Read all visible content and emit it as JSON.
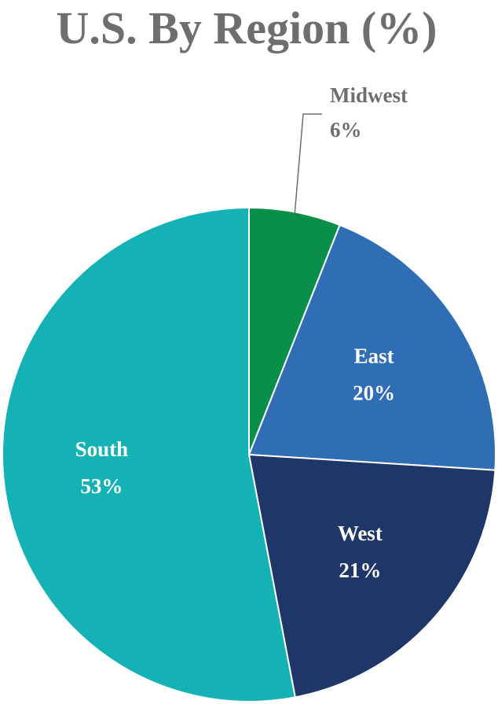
{
  "chart_data": {
    "type": "pie",
    "title": "U.S. By Region (%)",
    "categories": [
      "Midwest",
      "East",
      "West",
      "South"
    ],
    "values": [
      6,
      20,
      21,
      53
    ],
    "value_labels": [
      "6%",
      "20%",
      "21%",
      "53%"
    ],
    "colors": [
      "#0a8f4a",
      "#2f6db5",
      "#1f3668",
      "#14b1b5"
    ]
  }
}
